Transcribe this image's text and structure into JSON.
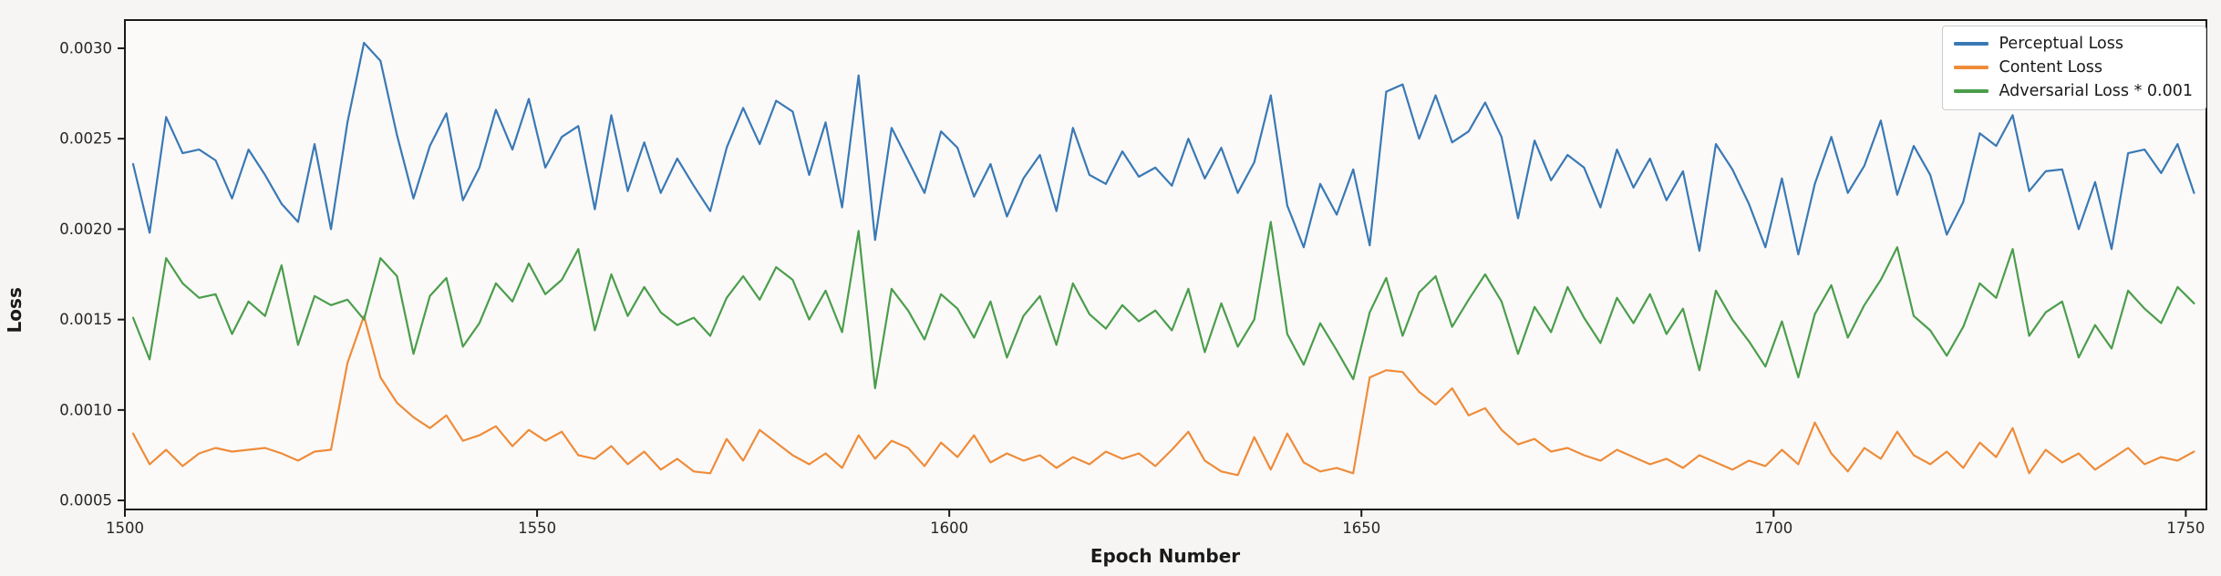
{
  "figure": {
    "background": "#f6f5f3",
    "plot_background": "#fbfaf9",
    "spine_color": "#1a1a1a",
    "tick_label_color": "#262626"
  },
  "chart_data": {
    "type": "line",
    "title": "",
    "xlabel": "Epoch Number",
    "ylabel": "Loss",
    "grid": false,
    "legend_position": "upper right",
    "xlim": [
      1500,
      1752.5
    ],
    "ylim": [
      0.00045,
      0.003156
    ],
    "xticks": [
      1500,
      1550,
      1600,
      1650,
      1700,
      1750
    ],
    "xtick_labels": [
      "1500",
      "1550",
      "1600",
      "1650",
      "1700",
      "1750"
    ],
    "yticks": [
      0.0005,
      0.001,
      0.0015,
      0.002,
      0.0025,
      0.003
    ],
    "ytick_labels": [
      "0.0005",
      "0.0010",
      "0.0015",
      "0.0020",
      "0.0025",
      "0.0030"
    ],
    "x_start": 1501,
    "x_step": 2,
    "series": [
      {
        "name": "Perceptual Loss",
        "color": "#3a79b5",
        "values": [
          0.00236,
          0.00198,
          0.00262,
          0.00242,
          0.00244,
          0.00238,
          0.00217,
          0.00244,
          0.0023,
          0.00214,
          0.00204,
          0.00247,
          0.002,
          0.00259,
          0.00303,
          0.00293,
          0.00252,
          0.00217,
          0.00246,
          0.00264,
          0.00216,
          0.00234,
          0.00266,
          0.00244,
          0.00272,
          0.00234,
          0.00251,
          0.00257,
          0.00211,
          0.00263,
          0.00221,
          0.00248,
          0.0022,
          0.00239,
          0.00224,
          0.0021,
          0.00245,
          0.00267,
          0.00247,
          0.00271,
          0.00265,
          0.0023,
          0.00259,
          0.00212,
          0.00285,
          0.00194,
          0.00256,
          0.00238,
          0.0022,
          0.00254,
          0.00245,
          0.00218,
          0.00236,
          0.00207,
          0.00228,
          0.00241,
          0.0021,
          0.00256,
          0.0023,
          0.00225,
          0.00243,
          0.00229,
          0.00234,
          0.00224,
          0.0025,
          0.00228,
          0.00245,
          0.0022,
          0.00237,
          0.00274,
          0.00213,
          0.0019,
          0.00225,
          0.00208,
          0.00233,
          0.00191,
          0.00276,
          0.0028,
          0.0025,
          0.00274,
          0.00248,
          0.00254,
          0.0027,
          0.00251,
          0.00206,
          0.00249,
          0.00227,
          0.00241,
          0.00234,
          0.00212,
          0.00244,
          0.00223,
          0.00239,
          0.00216,
          0.00232,
          0.00188,
          0.00247,
          0.00233,
          0.00214,
          0.0019,
          0.00228,
          0.00186,
          0.00225,
          0.00251,
          0.0022,
          0.00235,
          0.0026,
          0.00219,
          0.00246,
          0.0023,
          0.00197,
          0.00215,
          0.00253,
          0.00246,
          0.00263,
          0.00221,
          0.00232,
          0.00233,
          0.002,
          0.00226,
          0.00189,
          0.00242,
          0.00244,
          0.00231,
          0.00247,
          0.0022
        ]
      },
      {
        "name": "Content Loss",
        "color": "#ef8c3a",
        "values": [
          0.00087,
          0.0007,
          0.00078,
          0.00069,
          0.00076,
          0.00079,
          0.00077,
          0.00078,
          0.00079,
          0.00076,
          0.00072,
          0.00077,
          0.00078,
          0.00126,
          0.00152,
          0.00118,
          0.00104,
          0.00096,
          0.0009,
          0.00097,
          0.00083,
          0.00086,
          0.00091,
          0.0008,
          0.00089,
          0.00083,
          0.00088,
          0.00075,
          0.00073,
          0.0008,
          0.0007,
          0.00077,
          0.00067,
          0.00073,
          0.00066,
          0.00065,
          0.00084,
          0.00072,
          0.00089,
          0.00082,
          0.00075,
          0.0007,
          0.00076,
          0.00068,
          0.00086,
          0.00073,
          0.00083,
          0.00079,
          0.00069,
          0.00082,
          0.00074,
          0.00086,
          0.00071,
          0.00076,
          0.00072,
          0.00075,
          0.00068,
          0.00074,
          0.0007,
          0.00077,
          0.00073,
          0.00076,
          0.00069,
          0.00078,
          0.00088,
          0.00072,
          0.00066,
          0.00064,
          0.00085,
          0.00067,
          0.00087,
          0.00071,
          0.00066,
          0.00068,
          0.00065,
          0.00118,
          0.00122,
          0.00121,
          0.0011,
          0.00103,
          0.00112,
          0.00097,
          0.00101,
          0.00089,
          0.00081,
          0.00084,
          0.00077,
          0.00079,
          0.00075,
          0.00072,
          0.00078,
          0.00074,
          0.0007,
          0.00073,
          0.00068,
          0.00075,
          0.00071,
          0.00067,
          0.00072,
          0.00069,
          0.00078,
          0.0007,
          0.00093,
          0.00076,
          0.00066,
          0.00079,
          0.00073,
          0.00088,
          0.00075,
          0.0007,
          0.00077,
          0.00068,
          0.00082,
          0.00074,
          0.0009,
          0.00065,
          0.00078,
          0.00071,
          0.00076,
          0.00067,
          0.00073,
          0.00079,
          0.0007,
          0.00074,
          0.00072,
          0.00077
        ]
      },
      {
        "name": "Adversarial Loss * 0.001",
        "color": "#4b9e4b",
        "values": [
          0.00151,
          0.00128,
          0.00184,
          0.0017,
          0.00162,
          0.00164,
          0.00142,
          0.0016,
          0.00152,
          0.0018,
          0.00136,
          0.00163,
          0.00158,
          0.00161,
          0.0015,
          0.00184,
          0.00174,
          0.00131,
          0.00163,
          0.00173,
          0.00135,
          0.00148,
          0.0017,
          0.0016,
          0.00181,
          0.00164,
          0.00172,
          0.00189,
          0.00144,
          0.00175,
          0.00152,
          0.00168,
          0.00154,
          0.00147,
          0.00151,
          0.00141,
          0.00162,
          0.00174,
          0.00161,
          0.00179,
          0.00172,
          0.0015,
          0.00166,
          0.00143,
          0.00199,
          0.00112,
          0.00167,
          0.00155,
          0.00139,
          0.00164,
          0.00156,
          0.0014,
          0.0016,
          0.00129,
          0.00152,
          0.00163,
          0.00136,
          0.0017,
          0.00153,
          0.00145,
          0.00158,
          0.00149,
          0.00155,
          0.00144,
          0.00167,
          0.00132,
          0.00159,
          0.00135,
          0.0015,
          0.00204,
          0.00142,
          0.00125,
          0.00148,
          0.00133,
          0.00117,
          0.00154,
          0.00173,
          0.00141,
          0.00165,
          0.00174,
          0.00146,
          0.00161,
          0.00175,
          0.0016,
          0.00131,
          0.00157,
          0.00143,
          0.00168,
          0.00151,
          0.00137,
          0.00162,
          0.00148,
          0.00164,
          0.00142,
          0.00156,
          0.00122,
          0.00166,
          0.0015,
          0.00138,
          0.00124,
          0.00149,
          0.00118,
          0.00153,
          0.00169,
          0.0014,
          0.00158,
          0.00172,
          0.0019,
          0.00152,
          0.00144,
          0.0013,
          0.00146,
          0.0017,
          0.00162,
          0.00189,
          0.00141,
          0.00154,
          0.0016,
          0.00129,
          0.00147,
          0.00134,
          0.00166,
          0.00156,
          0.00148,
          0.00168,
          0.00159
        ]
      }
    ]
  }
}
